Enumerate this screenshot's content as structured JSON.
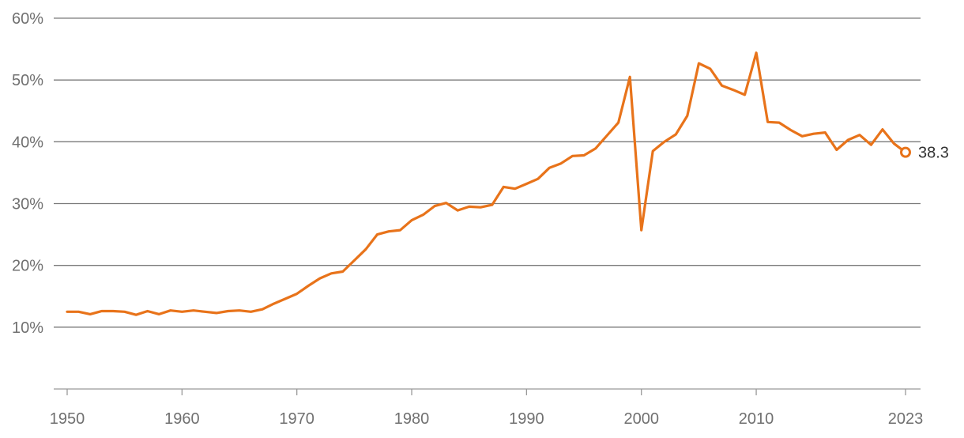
{
  "chart_data": {
    "type": "line",
    "title": "",
    "xlabel": "",
    "ylabel": "",
    "xlim": [
      1950,
      2023
    ],
    "ylim": [
      0,
      60
    ],
    "y_ticks": [
      10,
      20,
      30,
      40,
      50,
      60
    ],
    "y_tick_labels": [
      "10%",
      "20%",
      "30%",
      "40%",
      "50%",
      "60%"
    ],
    "x_ticks": [
      1950,
      1960,
      1970,
      1980,
      1990,
      2000,
      2010,
      2023
    ],
    "x_tick_labels": [
      "1950",
      "1960",
      "1970",
      "1980",
      "1990",
      "2000",
      "2010",
      "2023"
    ],
    "grid": true,
    "legend": "none",
    "line_color": "#E8731A",
    "end_label": "38.3",
    "series": [
      {
        "x": [
          1950,
          1951,
          1952,
          1953,
          1954,
          1955,
          1956,
          1957,
          1958,
          1959,
          1960,
          1961,
          1962,
          1963,
          1964,
          1965,
          1966,
          1967,
          1968,
          1969,
          1970,
          1971,
          1972,
          1973,
          1974,
          1975,
          1976,
          1977,
          1978,
          1979,
          1980,
          1981,
          1982,
          1983,
          1984,
          1985,
          1986,
          1987,
          1988,
          1989,
          1990,
          1991,
          1992,
          1993,
          1994,
          1995,
          1996,
          1997,
          1998,
          1999,
          2000,
          2001,
          2002,
          2003,
          2004,
          2005,
          2006,
          2007,
          2008,
          2009,
          2010,
          2011,
          2012,
          2013,
          2014,
          2015,
          2016,
          2017,
          2018,
          2019,
          2020,
          2021,
          2022,
          2023
        ],
        "values": [
          12.5,
          12.5,
          12.1,
          12.6,
          12.6,
          12.5,
          12.0,
          12.6,
          12.1,
          12.7,
          12.5,
          12.7,
          12.5,
          12.3,
          12.6,
          12.7,
          12.5,
          12.9,
          13.8,
          14.6,
          15.4,
          16.7,
          17.9,
          18.7,
          19.0,
          20.8,
          22.6,
          25.0,
          25.5,
          25.7,
          27.3,
          28.2,
          29.6,
          30.1,
          28.9,
          29.5,
          29.4,
          29.8,
          32.7,
          32.4,
          33.2,
          34.0,
          35.8,
          36.5,
          37.7,
          37.8,
          38.9,
          41.0,
          43.1,
          50.5,
          25.7,
          38.5,
          40.0,
          41.2,
          44.2,
          52.7,
          51.8,
          49.1,
          48.4,
          47.6,
          54.4,
          43.2,
          43.1,
          41.9,
          40.9,
          41.3,
          41.5,
          38.7,
          40.3,
          41.1,
          39.5,
          42.0,
          39.7,
          38.3
        ]
      }
    ]
  }
}
